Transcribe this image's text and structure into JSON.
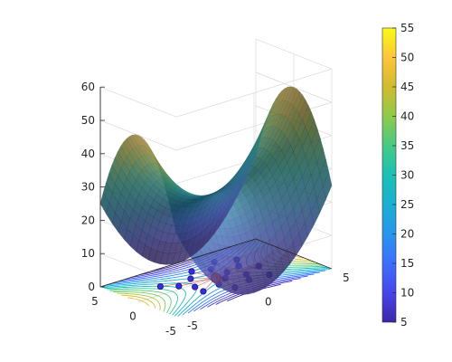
{
  "chart_data": {
    "type": "surface",
    "function": "z = 25 + y^2 - x^2 (saddle)",
    "x_ticks": [
      "5",
      "0",
      "-5"
    ],
    "y_ticks": [
      "-5",
      "0",
      "5"
    ],
    "z_ticks": [
      "0",
      "10",
      "20",
      "30",
      "40",
      "50",
      "60"
    ],
    "xlim": [
      -5,
      5
    ],
    "ylim": [
      -5,
      5
    ],
    "zlim": [
      0,
      60
    ],
    "grid": true,
    "colorbar": {
      "ticks": [
        "5",
        "10",
        "15",
        "20",
        "25",
        "30",
        "35",
        "40",
        "45",
        "50",
        "55"
      ],
      "range": [
        5,
        55
      ],
      "colormap": "parula"
    },
    "markers": [
      {
        "x": -0.6,
        "y": 0.3
      },
      {
        "x": -1.4,
        "y": -0.5
      },
      {
        "x": -1.1,
        "y": 1.4
      },
      {
        "x": 0.4,
        "y": 0.9
      },
      {
        "x": -2.3,
        "y": 1.0
      },
      {
        "x": 1.3,
        "y": -1.0
      },
      {
        "x": 0.6,
        "y": -2.1
      },
      {
        "x": 1.9,
        "y": 0.6
      },
      {
        "x": -0.5,
        "y": -1.6
      },
      {
        "x": 2.6,
        "y": -0.3
      },
      {
        "x": -1.8,
        "y": -1.7
      },
      {
        "x": 0.9,
        "y": 1.9
      },
      {
        "x": -2.9,
        "y": -0.2
      },
      {
        "x": 2.2,
        "y": 2.4
      },
      {
        "x": -0.3,
        "y": 2.6
      },
      {
        "x": 1.6,
        "y": -2.8
      },
      {
        "x": -2.5,
        "y": 2.2
      },
      {
        "x": 3.1,
        "y": 1.4
      }
    ],
    "optimum": {
      "x": 0,
      "y": 0
    },
    "colors": {
      "marker_fill": "#3A2BE0",
      "marker_edge": "#1B1470",
      "optimum_fill": "#FF5A1E",
      "optimum_edge": "#C41A00",
      "path_color": "#B02020"
    }
  }
}
